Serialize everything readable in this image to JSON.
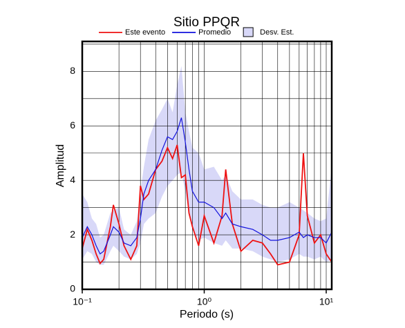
{
  "chart_data": {
    "type": "line",
    "title": "Sitio PPQR",
    "x_label": "Periodo (s)",
    "y_label": "Amplitud",
    "x_scale": "log",
    "x": [
      0.1,
      0.11,
      0.12,
      0.13,
      0.14,
      0.15,
      0.17,
      0.18,
      0.2,
      0.22,
      0.25,
      0.28,
      0.3,
      0.32,
      0.35,
      0.4,
      0.45,
      0.5,
      0.55,
      0.6,
      0.65,
      0.7,
      0.75,
      0.8,
      0.9,
      1.0,
      1.2,
      1.4,
      1.5,
      1.7,
      2,
      2.5,
      3,
      3.5,
      4,
      5,
      6,
      6.5,
      7,
      8,
      9,
      10,
      11.1
    ],
    "series": [
      {
        "name": "Este evento",
        "color": "#ee1111",
        "values": [
          1.5,
          2.2,
          1.8,
          1.3,
          0.95,
          1.1,
          2.3,
          3.1,
          2.4,
          1.6,
          1.1,
          1.6,
          3.8,
          3.3,
          3.5,
          4.4,
          4.7,
          5.2,
          4.8,
          5.3,
          4.1,
          4.2,
          2.8,
          2.3,
          1.6,
          2.7,
          1.7,
          2.7,
          4.4,
          2.4,
          1.4,
          1.8,
          1.7,
          1.3,
          0.9,
          1.0,
          2.0,
          5.0,
          2.7,
          1.7,
          2.0,
          1.3,
          1.0
        ]
      },
      {
        "name": "Promedio",
        "color": "#1111dd",
        "values": [
          1.9,
          2.3,
          2.0,
          1.6,
          1.3,
          1.4,
          2.0,
          2.3,
          2.1,
          1.7,
          1.6,
          1.9,
          2.6,
          3.5,
          4.0,
          4.4,
          5.1,
          5.6,
          5.5,
          5.8,
          6.3,
          5.4,
          4.4,
          3.6,
          3.2,
          3.2,
          3.0,
          2.6,
          2.8,
          2.4,
          2.3,
          2.2,
          2.0,
          1.8,
          1.8,
          1.9,
          2.1,
          1.9,
          2.0,
          1.9,
          1.9,
          1.7,
          2.1
        ]
      }
    ],
    "band": {
      "name": "Desv. Est.",
      "color": "#d8d8f8",
      "upper": [
        3.5,
        3.2,
        2.6,
        2.4,
        1.9,
        2.0,
        2.8,
        2.9,
        3.0,
        2.2,
        2.0,
        2.5,
        3.6,
        4.5,
        5.5,
        6.2,
        6.6,
        7.0,
        6.5,
        7.5,
        8.2,
        6.5,
        5.8,
        5.2,
        5.0,
        4.4,
        4.5,
        4.0,
        4.2,
        3.6,
        3.3,
        3.3,
        3.1,
        3.0,
        3.0,
        3.2,
        3.0,
        2.9,
        2.8,
        2.6,
        2.5,
        2.6,
        4.5
      ],
      "lower": [
        1.1,
        1.4,
        1.3,
        1.0,
        0.9,
        0.9,
        1.4,
        1.6,
        1.4,
        1.2,
        1.1,
        1.3,
        1.7,
        2.4,
        2.6,
        2.8,
        3.4,
        3.8,
        4.0,
        4.2,
        4.3,
        3.6,
        2.8,
        2.2,
        1.8,
        1.9,
        1.7,
        1.6,
        1.8,
        1.5,
        1.5,
        1.4,
        1.2,
        1.1,
        1.0,
        1.1,
        1.3,
        1.2,
        1.2,
        1.1,
        1.2,
        1.0,
        1.1
      ]
    },
    "xlim": [
      0.1,
      11.1
    ],
    "ylim": [
      0,
      9.1
    ],
    "xticks": [
      {
        "value": 0.1,
        "label": "10⁻¹"
      },
      {
        "value": 1,
        "label": "10⁰"
      },
      {
        "value": 10,
        "label": "10¹"
      }
    ],
    "minor_xticks": [
      0.2,
      0.3,
      0.4,
      0.5,
      0.6,
      0.7,
      0.8,
      0.9,
      2,
      3,
      4,
      5,
      6,
      7,
      8,
      9
    ],
    "yticks": [
      0,
      2,
      4,
      6,
      8
    ],
    "minor_yticks": [
      1,
      3,
      5,
      7,
      9
    ],
    "grid": true
  }
}
